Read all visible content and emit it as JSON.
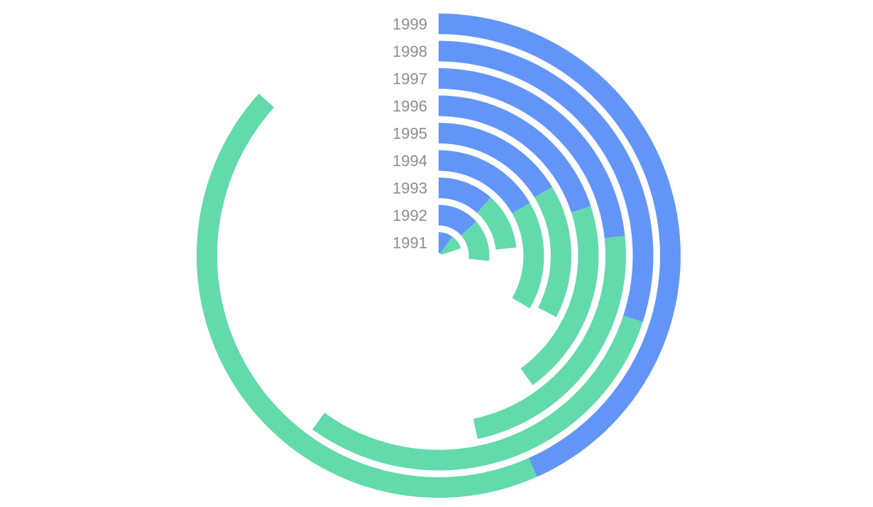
{
  "chart_data": {
    "type": "radial-stacked-bar",
    "categories": [
      "1991",
      "1992",
      "1993",
      "1994",
      "1995",
      "1996",
      "1997",
      "1998",
      "1999"
    ],
    "series": [
      {
        "color": "#6395f9",
        "values": [
          3,
          4,
          3.5,
          5,
          4.9,
          6,
          7,
          9,
          13
        ]
      },
      {
        "color": "#62daab",
        "values": [
          3,
          4,
          3.5,
          5,
          4.9,
          6,
          7,
          9,
          13
        ]
      }
    ],
    "scale_max": 30,
    "max_angle_deg": 360
  }
}
